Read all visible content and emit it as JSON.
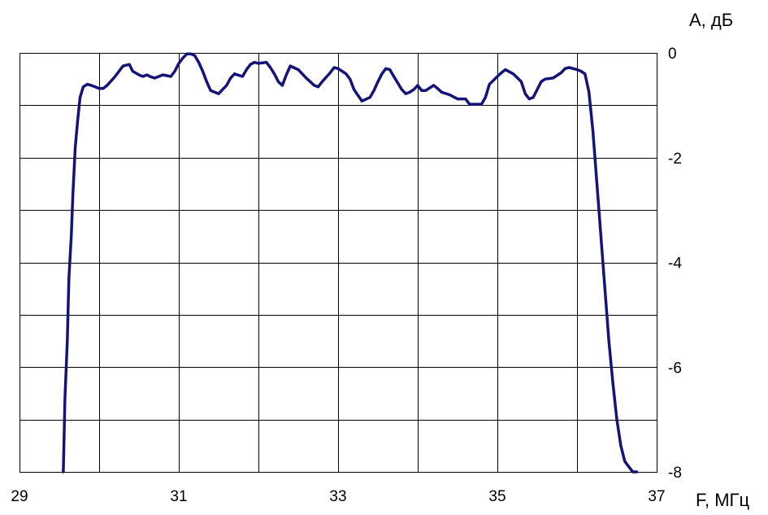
{
  "chart_data": {
    "type": "line",
    "title": "",
    "xlabel": "F, МГц",
    "ylabel": "А, дБ",
    "xlim": [
      29,
      37
    ],
    "ylim": [
      -8,
      0
    ],
    "x_ticks": [
      29,
      31,
      33,
      35,
      37
    ],
    "x_tick_labels": [
      "29",
      "31",
      "33",
      "35",
      "37"
    ],
    "y_ticks": [
      0,
      -2,
      -4,
      -6,
      -8
    ],
    "y_tick_labels": [
      "0",
      "-2",
      "-4",
      "-6",
      "-8"
    ],
    "grid": true,
    "grid_x_step": 1,
    "grid_y_step": 1,
    "legend": "none",
    "line_color": "#141478",
    "series": [
      {
        "x": [
          29.55,
          29.57,
          29.6,
          29.62,
          29.65,
          29.67,
          29.7,
          29.73,
          29.76,
          29.8,
          29.85,
          29.9,
          29.95,
          30.0,
          30.05,
          30.1,
          30.2,
          30.3,
          30.38,
          30.42,
          30.5,
          30.55,
          30.6,
          30.65,
          30.7,
          30.8,
          30.9,
          30.95,
          31.0,
          31.05,
          31.1,
          31.15,
          31.2,
          31.25,
          31.3,
          31.35,
          31.4,
          31.5,
          31.6,
          31.65,
          31.7,
          31.8,
          31.85,
          31.9,
          31.95,
          32.0,
          32.1,
          32.15,
          32.2,
          32.25,
          32.3,
          32.35,
          32.4,
          32.5,
          32.6,
          32.7,
          32.75,
          32.8,
          32.9,
          32.95,
          33.0,
          33.05,
          33.1,
          33.15,
          33.2,
          33.3,
          33.4,
          33.45,
          33.5,
          33.55,
          33.6,
          33.65,
          33.7,
          33.8,
          33.85,
          33.9,
          33.95,
          34.0,
          34.05,
          34.1,
          34.2,
          34.25,
          34.3,
          34.4,
          34.5,
          34.6,
          34.65,
          34.7,
          34.8,
          34.85,
          34.9,
          35.0,
          35.05,
          35.1,
          35.2,
          35.3,
          35.35,
          35.4,
          35.45,
          35.5,
          35.55,
          35.6,
          35.7,
          35.8,
          35.85,
          35.9,
          36.0,
          36.05,
          36.1,
          36.15,
          36.2,
          36.25,
          36.3,
          36.35,
          36.4,
          36.45,
          36.5,
          36.55,
          36.6,
          36.65,
          36.7,
          36.72,
          36.74,
          36.75
        ],
        "y": [
          -8.0,
          -6.6,
          -5.5,
          -4.3,
          -3.5,
          -2.7,
          -1.8,
          -1.3,
          -0.85,
          -0.65,
          -0.6,
          -0.62,
          -0.65,
          -0.68,
          -0.68,
          -0.62,
          -0.45,
          -0.25,
          -0.22,
          -0.35,
          -0.42,
          -0.45,
          -0.42,
          -0.46,
          -0.48,
          -0.42,
          -0.45,
          -0.35,
          -0.2,
          -0.1,
          -0.02,
          -0.02,
          -0.05,
          -0.18,
          -0.35,
          -0.55,
          -0.72,
          -0.78,
          -0.62,
          -0.48,
          -0.4,
          -0.45,
          -0.32,
          -0.22,
          -0.18,
          -0.2,
          -0.18,
          -0.28,
          -0.4,
          -0.55,
          -0.62,
          -0.42,
          -0.25,
          -0.32,
          -0.48,
          -0.62,
          -0.65,
          -0.55,
          -0.38,
          -0.28,
          -0.3,
          -0.35,
          -0.4,
          -0.5,
          -0.7,
          -0.92,
          -0.85,
          -0.72,
          -0.55,
          -0.4,
          -0.3,
          -0.32,
          -0.45,
          -0.7,
          -0.78,
          -0.75,
          -0.7,
          -0.62,
          -0.72,
          -0.72,
          -0.62,
          -0.68,
          -0.75,
          -0.8,
          -0.88,
          -0.88,
          -0.98,
          -0.98,
          -0.98,
          -0.85,
          -0.6,
          -0.45,
          -0.38,
          -0.32,
          -0.4,
          -0.55,
          -0.78,
          -0.88,
          -0.85,
          -0.7,
          -0.55,
          -0.5,
          -0.48,
          -0.38,
          -0.3,
          -0.28,
          -0.32,
          -0.35,
          -0.4,
          -0.75,
          -1.5,
          -2.5,
          -3.5,
          -4.5,
          -5.5,
          -6.3,
          -7.0,
          -7.5,
          -7.8,
          -7.9,
          -8.0,
          -8.0,
          -8.0,
          -8.0
        ]
      }
    ]
  }
}
